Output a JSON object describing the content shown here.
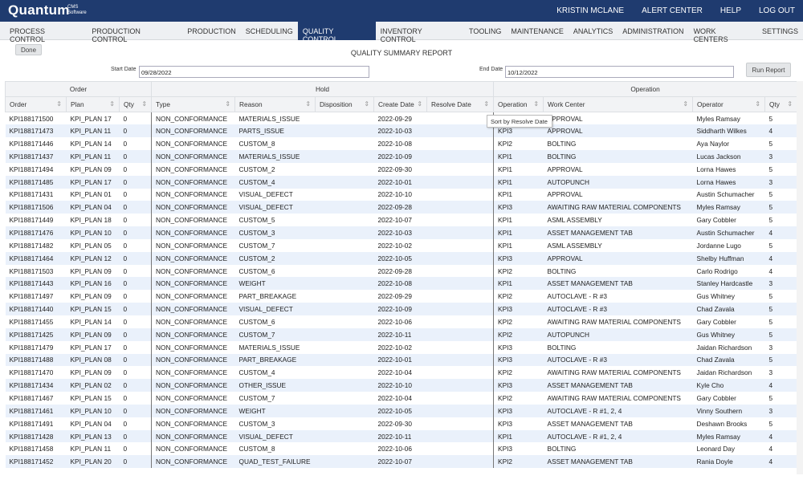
{
  "header": {
    "logo": "Quantum",
    "logo_sub": "CMS Software",
    "user": "KRISTIN MCLANE",
    "links": [
      "ALERT CENTER",
      "HELP",
      "LOG OUT"
    ]
  },
  "menu": {
    "items": [
      "PROCESS CONTROL",
      "PRODUCTION CONTROL",
      "PRODUCTION",
      "SCHEDULING",
      "QUALITY CONTROL",
      "INVENTORY CONTROL",
      "TOOLING",
      "MAINTENANCE",
      "ANALYTICS",
      "ADMINISTRATION",
      "WORK CENTERS",
      "SETTINGS"
    ],
    "active": 4
  },
  "toolbar": {
    "done": "Done",
    "title": "QUALITY SUMMARY REPORT",
    "start_label": "Start Date",
    "start_value": "09/28/2022",
    "end_label": "End Date",
    "end_value": "10/12/2022",
    "run": "Run Report"
  },
  "table": {
    "groups": [
      "Order",
      "Hold",
      "Operation"
    ],
    "columns": [
      "Order",
      "Plan",
      "Qty",
      "Type",
      "Reason",
      "Disposition",
      "Create Date",
      "Resolve Date",
      "Operation",
      "Work Center",
      "Operator",
      "Qty"
    ],
    "rows": [
      [
        "KPI188171500",
        "KPI_PLAN 17",
        0,
        "NON_CONFORMANCE",
        "MATERIALS_ISSUE",
        null,
        "2022-09-29",
        null,
        null,
        "APPROVAL",
        "Myles Ramsay",
        5
      ],
      [
        "KPI188171473",
        "KPI_PLAN 11",
        0,
        "NON_CONFORMANCE",
        "PARTS_ISSUE",
        null,
        "2022-10-03",
        null,
        "KPI3",
        "APPROVAL",
        "Siddharth Wilkes",
        4
      ],
      [
        "KPI188171446",
        "KPI_PLAN 14",
        0,
        "NON_CONFORMANCE",
        "CUSTOM_8",
        null,
        "2022-10-08",
        null,
        "KPI2",
        "BOLTING",
        "Aya Naylor",
        5
      ],
      [
        "KPI188171437",
        "KPI_PLAN 11",
        0,
        "NON_CONFORMANCE",
        "MATERIALS_ISSUE",
        null,
        "2022-10-09",
        null,
        "KPI1",
        "BOLTING",
        "Lucas Jackson",
        3
      ],
      [
        "KPI188171494",
        "KPI_PLAN 09",
        0,
        "NON_CONFORMANCE",
        "CUSTOM_2",
        null,
        "2022-09-30",
        null,
        "KPI1",
        "APPROVAL",
        "Lorna Hawes",
        5
      ],
      [
        "KPI188171485",
        "KPI_PLAN 17",
        0,
        "NON_CONFORMANCE",
        "CUSTOM_4",
        null,
        "2022-10-01",
        null,
        "KPI1",
        "AUTOPUNCH",
        "Lorna Hawes",
        3
      ],
      [
        "KPI188171431",
        "KPI_PLAN 01",
        0,
        "NON_CONFORMANCE",
        "VISUAL_DEFECT",
        null,
        "2022-10-10",
        null,
        "KPI1",
        "APPROVAL",
        "Austin Schumacher",
        5
      ],
      [
        "KPI188171506",
        "KPI_PLAN 04",
        0,
        "NON_CONFORMANCE",
        "VISUAL_DEFECT",
        null,
        "2022-09-28",
        null,
        "KPI3",
        "AWAITING RAW MATERIAL COMPONENTS",
        "Myles Ramsay",
        5
      ],
      [
        "KPI188171449",
        "KPI_PLAN 18",
        0,
        "NON_CONFORMANCE",
        "CUSTOM_5",
        null,
        "2022-10-07",
        null,
        "KPI1",
        "ASML ASSEMBLY",
        "Gary Cobbler",
        5
      ],
      [
        "KPI188171476",
        "KPI_PLAN 10",
        0,
        "NON_CONFORMANCE",
        "CUSTOM_3",
        null,
        "2022-10-03",
        null,
        "KPI1",
        "ASSET MANAGEMENT TAB",
        "Austin Schumacher",
        4
      ],
      [
        "KPI188171482",
        "KPI_PLAN 05",
        0,
        "NON_CONFORMANCE",
        "CUSTOM_7",
        null,
        "2022-10-02",
        null,
        "KPI1",
        "ASML ASSEMBLY",
        "Jordanne Lugo",
        5
      ],
      [
        "KPI188171464",
        "KPI_PLAN 12",
        0,
        "NON_CONFORMANCE",
        "CUSTOM_2",
        null,
        "2022-10-05",
        null,
        "KPI3",
        "APPROVAL",
        "Shelby Huffman",
        4
      ],
      [
        "KPI188171503",
        "KPI_PLAN 09",
        0,
        "NON_CONFORMANCE",
        "CUSTOM_6",
        null,
        "2022-09-28",
        null,
        "KPI2",
        "BOLTING",
        "Carlo Rodrigo",
        4
      ],
      [
        "KPI188171443",
        "KPI_PLAN 16",
        0,
        "NON_CONFORMANCE",
        "WEIGHT",
        null,
        "2022-10-08",
        null,
        "KPI1",
        "ASSET MANAGEMENT TAB",
        "Stanley Hardcastle",
        3
      ],
      [
        "KPI188171497",
        "KPI_PLAN 09",
        0,
        "NON_CONFORMANCE",
        "PART_BREAKAGE",
        null,
        "2022-09-29",
        null,
        "KPI2",
        "AUTOCLAVE - R #3",
        "Gus Whitney",
        5
      ],
      [
        "KPI188171440",
        "KPI_PLAN 15",
        0,
        "NON_CONFORMANCE",
        "VISUAL_DEFECT",
        null,
        "2022-10-09",
        null,
        "KPI3",
        "AUTOCLAVE - R #3",
        "Chad Zavala",
        5
      ],
      [
        "KPI188171455",
        "KPI_PLAN 14",
        0,
        "NON_CONFORMANCE",
        "CUSTOM_6",
        null,
        "2022-10-06",
        null,
        "KPI2",
        "AWAITING RAW MATERIAL COMPONENTS",
        "Gary Cobbler",
        5
      ],
      [
        "KPI188171425",
        "KPI_PLAN 09",
        0,
        "NON_CONFORMANCE",
        "CUSTOM_7",
        null,
        "2022-10-11",
        null,
        "KPI2",
        "AUTOPUNCH",
        "Gus Whitney",
        5
      ],
      [
        "KPI188171479",
        "KPI_PLAN 17",
        0,
        "NON_CONFORMANCE",
        "MATERIALS_ISSUE",
        null,
        "2022-10-02",
        null,
        "KPI3",
        "BOLTING",
        "Jaidan Richardson",
        3
      ],
      [
        "KPI188171488",
        "KPI_PLAN 08",
        0,
        "NON_CONFORMANCE",
        "PART_BREAKAGE",
        null,
        "2022-10-01",
        null,
        "KPI3",
        "AUTOCLAVE - R #3",
        "Chad Zavala",
        5
      ],
      [
        "KPI188171470",
        "KPI_PLAN 09",
        0,
        "NON_CONFORMANCE",
        "CUSTOM_4",
        null,
        "2022-10-04",
        null,
        "KPI2",
        "AWAITING RAW MATERIAL COMPONENTS",
        "Jaidan Richardson",
        3
      ],
      [
        "KPI188171434",
        "KPI_PLAN 02",
        0,
        "NON_CONFORMANCE",
        "OTHER_ISSUE",
        null,
        "2022-10-10",
        null,
        "KPI3",
        "ASSET MANAGEMENT TAB",
        "Kyle Cho",
        4
      ],
      [
        "KPI188171467",
        "KPI_PLAN 15",
        0,
        "NON_CONFORMANCE",
        "CUSTOM_7",
        null,
        "2022-10-04",
        null,
        "KPI2",
        "AWAITING RAW MATERIAL COMPONENTS",
        "Gary Cobbler",
        5
      ],
      [
        "KPI188171461",
        "KPI_PLAN 10",
        0,
        "NON_CONFORMANCE",
        "WEIGHT",
        null,
        "2022-10-05",
        null,
        "KPI3",
        "AUTOCLAVE - R #1, 2, 4",
        "Vinny Southern",
        3
      ],
      [
        "KPI188171491",
        "KPI_PLAN 04",
        0,
        "NON_CONFORMANCE",
        "CUSTOM_3",
        null,
        "2022-09-30",
        null,
        "KPI3",
        "ASSET MANAGEMENT TAB",
        "Deshawn Brooks",
        5
      ],
      [
        "KPI188171428",
        "KPI_PLAN 13",
        0,
        "NON_CONFORMANCE",
        "VISUAL_DEFECT",
        null,
        "2022-10-11",
        null,
        "KPI1",
        "AUTOCLAVE - R #1, 2, 4",
        "Myles Ramsay",
        4
      ],
      [
        "KPI188171458",
        "KPI_PLAN 11",
        0,
        "NON_CONFORMANCE",
        "CUSTOM_8",
        null,
        "2022-10-06",
        null,
        "KPI3",
        "BOLTING",
        "Leonard Day",
        4
      ],
      [
        "KPI188171452",
        "KPI_PLAN 20",
        0,
        "NON_CONFORMANCE",
        "QUAD_TEST_FAILURE",
        null,
        "2022-10-07",
        null,
        "KPI2",
        "ASSET MANAGEMENT TAB",
        "Rania Doyle",
        4
      ]
    ]
  },
  "tooltip": "Sort by Resolve Date"
}
